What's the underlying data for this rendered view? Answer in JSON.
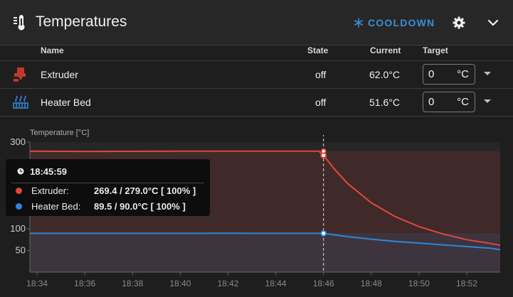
{
  "header": {
    "title": "Temperatures",
    "cooldown_label": "COOLDOWN",
    "accent_color": "#3b8fd6"
  },
  "table": {
    "columns": {
      "name": "Name",
      "state": "State",
      "current": "Current",
      "target": "Target"
    },
    "rows": [
      {
        "name": "Extruder",
        "icon": "extruder-icon",
        "state": "off",
        "current": "62.0°C",
        "target_value": "0",
        "target_unit": "°C",
        "color": "#e2473e"
      },
      {
        "name": "Heater Bed",
        "icon": "heater-bed-icon",
        "state": "off",
        "current": "51.6°C",
        "target_value": "0",
        "target_unit": "°C",
        "color": "#2f86d8"
      }
    ]
  },
  "tooltip": {
    "time": "18:45:59",
    "rows": [
      {
        "label": "Extruder:",
        "value": "269.4 / 279.0°C [ 100% ]",
        "color": "#e2473e"
      },
      {
        "label": "Heater Bed:",
        "value": "89.5 / 90.0°C [ 100% ]",
        "color": "#2f86d8"
      }
    ]
  },
  "chart_data": {
    "type": "line",
    "ylabel": "Temperature [°C]",
    "yticks": [
      50,
      100,
      300
    ],
    "ylim": [
      0,
      300
    ],
    "xticks": [
      "18:34",
      "18:36",
      "18:38",
      "18:40",
      "18:42",
      "18:44",
      "18:46",
      "18:48",
      "18:50",
      "18:52"
    ],
    "x_minutes": [
      0,
      2,
      4,
      6,
      8,
      10,
      12,
      14,
      16,
      18
    ],
    "xlim_minutes": [
      -0.3,
      19.4
    ],
    "cursor_minute": 12,
    "series": [
      {
        "name": "Extruder",
        "color": "#e2473e",
        "target": [
          [
            -0.3,
            279
          ],
          [
            12,
            279
          ],
          [
            12,
            279
          ],
          [
            19.4,
            279
          ]
        ],
        "values": [
          [
            -0.3,
            279
          ],
          [
            2,
            278.5
          ],
          [
            6,
            279
          ],
          [
            10,
            279
          ],
          [
            11.8,
            279
          ],
          [
            12,
            269.4
          ],
          [
            12.5,
            235
          ],
          [
            13,
            205
          ],
          [
            14,
            160
          ],
          [
            15,
            128
          ],
          [
            16,
            105
          ],
          [
            17,
            88
          ],
          [
            18,
            75
          ],
          [
            19,
            66
          ],
          [
            19.4,
            62
          ]
        ]
      },
      {
        "name": "Heater Bed",
        "color": "#2f86d8",
        "target": [
          [
            -0.3,
            90
          ],
          [
            19.4,
            90
          ]
        ],
        "values": [
          [
            -0.3,
            89.5
          ],
          [
            4,
            89.5
          ],
          [
            8,
            89.6
          ],
          [
            11.8,
            89.5
          ],
          [
            12,
            89.5
          ],
          [
            13,
            82
          ],
          [
            14,
            76
          ],
          [
            15,
            71
          ],
          [
            16,
            67
          ],
          [
            17,
            63
          ],
          [
            18,
            59
          ],
          [
            19,
            55
          ],
          [
            19.4,
            51.6
          ]
        ]
      }
    ]
  }
}
